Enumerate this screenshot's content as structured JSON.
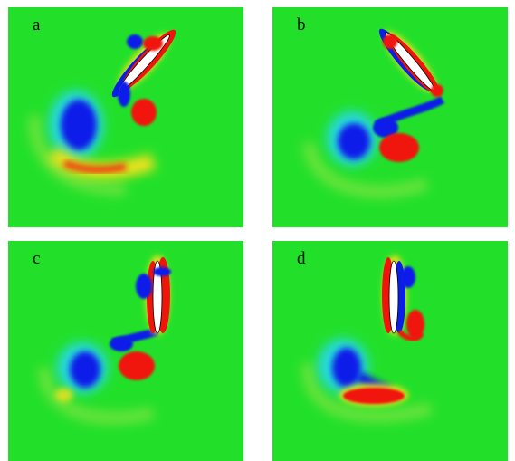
{
  "panels": [
    {
      "label": "a"
    },
    {
      "label": "b"
    },
    {
      "label": "c"
    },
    {
      "label": "d"
    }
  ],
  "colors": {
    "background": "#22e02a",
    "negative_core": "#0a1ee8",
    "negative_halo": "#28d8e0",
    "positive_core": "#f0140a",
    "positive_halo": "#f5e11e",
    "plate": "#ffffff"
  }
}
